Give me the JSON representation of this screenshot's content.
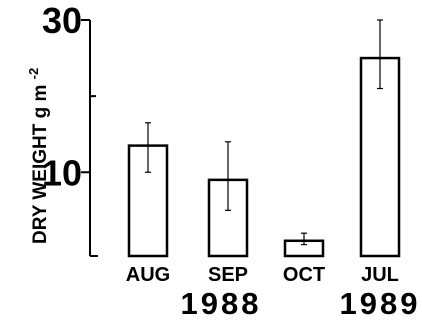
{
  "chart_data": {
    "type": "bar",
    "title": "",
    "xlabel": "",
    "ylabel": "DRY WEIGHT g m",
    "ylabel_superscript": "-2",
    "categories": [
      "AUG",
      "SEP",
      "OCT",
      "JUL"
    ],
    "year_groups": [
      {
        "label": "1988",
        "categories": [
          "AUG",
          "SEP",
          "OCT"
        ]
      },
      {
        "label": "1989",
        "categories": [
          "JUL"
        ]
      }
    ],
    "series": [
      {
        "values": [
          13.5,
          9.0,
          1.0,
          25.0
        ],
        "error_low": [
          10.0,
          5.0,
          0.5,
          21.0
        ],
        "error_high": [
          16.5,
          14.0,
          2.0,
          30.0
        ]
      }
    ],
    "ylim": [
      -1,
      30
    ],
    "yticks_major": [
      10,
      30
    ],
    "yticks_major_labels": [
      "10",
      "30"
    ],
    "yticks_minor": [
      20
    ],
    "grid": false,
    "legend": "none",
    "colors": {
      "bar_fill": "#ffffff",
      "stroke": "#000000"
    }
  }
}
